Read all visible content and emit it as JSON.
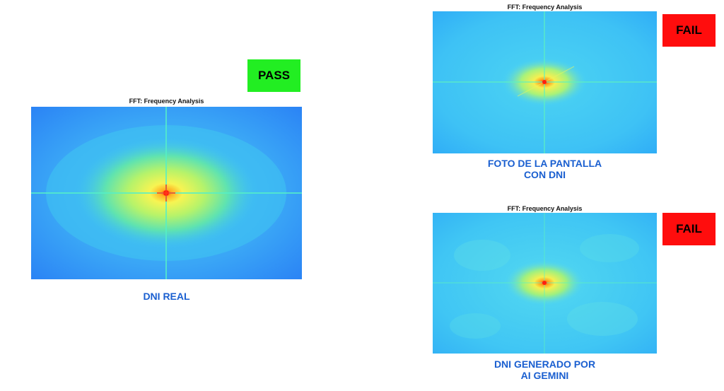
{
  "panels": [
    {
      "title": "FFT: Frequency Analysis",
      "caption": "DNI REAL",
      "verdict": "PASS",
      "verdict_color": "#22ee22",
      "caption_color": "#1a5fd0"
    },
    {
      "title": "FFT: Frequency Analysis",
      "caption": "FOTO DE LA PANTALLA\nCON DNI",
      "verdict": "FAIL",
      "verdict_color": "#ff0d0d",
      "caption_color": "#1a5fd0"
    },
    {
      "title": "FFT: Frequency Analysis",
      "caption": "DNI GENERADO POR\nAI GEMINI",
      "verdict": "FAIL",
      "verdict_color": "#ff0d0d",
      "caption_color": "#1a5fd0"
    }
  ],
  "colormap": {
    "background_outer": "#2b8cff",
    "background_mid": "#3fc3f2",
    "halo": "#7ef0a0",
    "glow": "#f5f25a",
    "center": "#ff2a1a",
    "axis_line": "#55f0c8"
  }
}
